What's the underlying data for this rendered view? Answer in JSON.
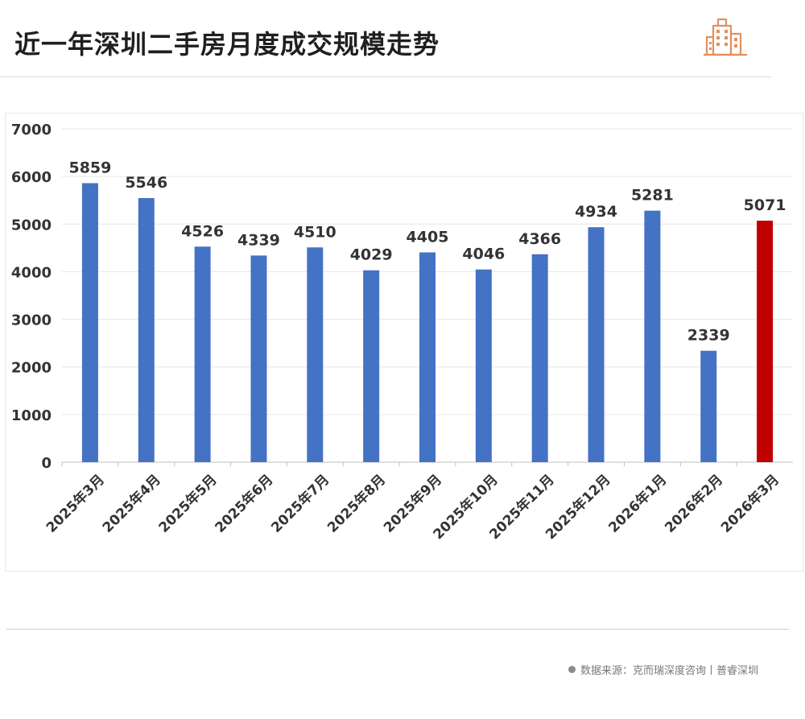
{
  "header": {
    "title": "近一年深圳二手房月度成交规模走势"
  },
  "footer": {
    "source_text": "数据来源：克而瑞深度咨询丨普睿深圳"
  },
  "logo_icon": "buildings-icon",
  "colors": {
    "bar_default": "#4472c4",
    "bar_highlight": "#c00000",
    "logo": "#e0915f",
    "grid": "#e6e6e6"
  },
  "chart_data": {
    "type": "bar",
    "title": "近一年深圳二手房月度成交规模走势",
    "xlabel": "",
    "ylabel": "",
    "ylim": [
      0,
      7000
    ],
    "yticks": [
      0,
      1000,
      2000,
      3000,
      4000,
      5000,
      6000,
      7000
    ],
    "grid": true,
    "legend": "none",
    "categories": [
      "2025年3月",
      "2025年4月",
      "2025年5月",
      "2025年6月",
      "2025年7月",
      "2025年8月",
      "2025年9月",
      "2025年10月",
      "2025年11月",
      "2025年12月",
      "2026年1月",
      "2026年2月",
      "2026年3月"
    ],
    "values": [
      5859,
      5546,
      4526,
      4339,
      4510,
      4029,
      4405,
      4046,
      4366,
      4934,
      5281,
      2339,
      5071
    ],
    "highlight_index": 12
  }
}
